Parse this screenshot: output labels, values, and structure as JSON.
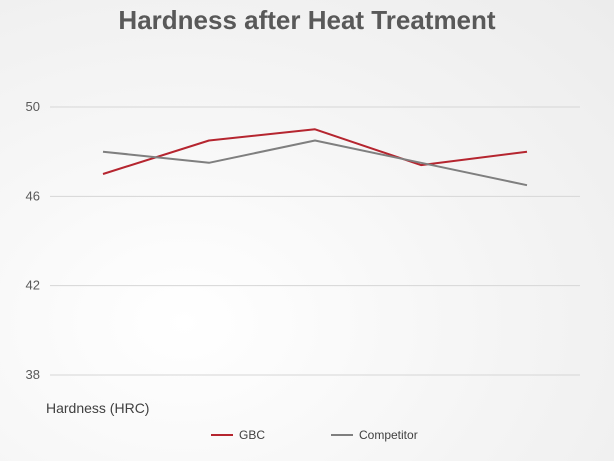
{
  "chart_data": {
    "type": "line",
    "title": "Hardness after Heat Treatment",
    "xlabel": "",
    "ylabel": "Hardness (HRC)",
    "ylim": [
      38,
      50
    ],
    "yticks": [
      38,
      42,
      46,
      50
    ],
    "grid": true,
    "legend_position": "bottom",
    "x": [
      1,
      2,
      3,
      4,
      5
    ],
    "series": [
      {
        "name": "GBC",
        "color": "#b5252f",
        "values": [
          47,
          48.5,
          49,
          47.4,
          48
        ]
      },
      {
        "name": "Competitor",
        "color": "#7f7f7f",
        "values": [
          48,
          47.5,
          48.5,
          47.5,
          46.5
        ]
      }
    ]
  }
}
